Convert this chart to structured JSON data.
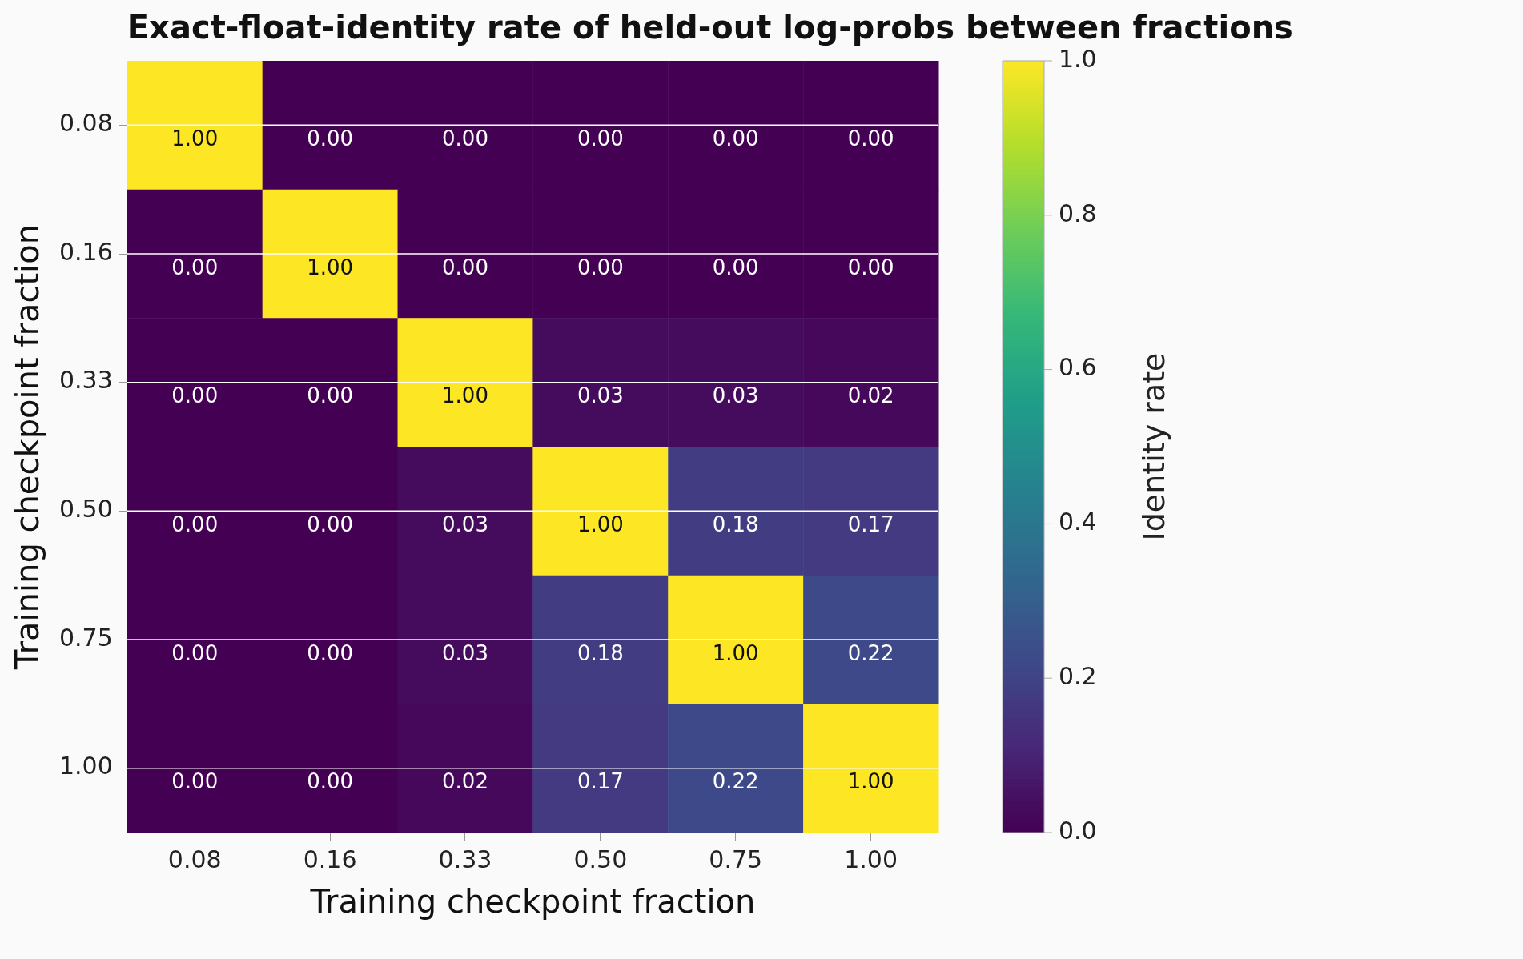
{
  "chart_data": {
    "type": "heatmap",
    "title": "Exact-float-identity rate of held-out log-probs between fractions",
    "xlabel": "Training checkpoint fraction",
    "ylabel": "Training checkpoint fraction",
    "clabel": "Identity rate",
    "categories": [
      "0.08",
      "0.16",
      "0.33",
      "0.50",
      "0.75",
      "1.00"
    ],
    "y_categories": [
      "0.08",
      "0.16",
      "0.33",
      "0.50",
      "0.75",
      "1.00"
    ],
    "cells": [
      [
        1.0,
        0.0,
        0.0,
        0.0,
        0.0,
        0.0
      ],
      [
        0.0,
        1.0,
        0.0,
        0.0,
        0.0,
        0.0
      ],
      [
        0.0,
        0.0,
        1.0,
        0.03,
        0.03,
        0.02
      ],
      [
        0.0,
        0.0,
        0.03,
        1.0,
        0.18,
        0.17
      ],
      [
        0.0,
        0.0,
        0.03,
        0.18,
        1.0,
        0.22
      ],
      [
        0.0,
        0.0,
        0.02,
        0.17,
        0.22,
        1.0
      ]
    ],
    "cell_labels": [
      [
        "1.00",
        "0.00",
        "0.00",
        "0.00",
        "0.00",
        "0.00"
      ],
      [
        "0.00",
        "1.00",
        "0.00",
        "0.00",
        "0.00",
        "0.00"
      ],
      [
        "0.00",
        "0.00",
        "1.00",
        "0.03",
        "0.03",
        "0.02"
      ],
      [
        "0.00",
        "0.00",
        "0.03",
        "1.00",
        "0.18",
        "0.17"
      ],
      [
        "0.00",
        "0.00",
        "0.03",
        "0.18",
        "1.00",
        "0.22"
      ],
      [
        "0.00",
        "0.00",
        "0.02",
        "0.17",
        "0.22",
        "1.00"
      ]
    ],
    "grid": "y",
    "clim": [
      0,
      1
    ],
    "cticks": [
      {
        "value": 0,
        "label": "0.0"
      },
      {
        "value": 0.2,
        "label": "0.2"
      },
      {
        "value": 0.4,
        "label": "0.4"
      },
      {
        "value": 0.6,
        "label": "0.6"
      },
      {
        "value": 0.8,
        "label": "0.8"
      },
      {
        "value": 1,
        "label": "1.0"
      }
    ]
  }
}
